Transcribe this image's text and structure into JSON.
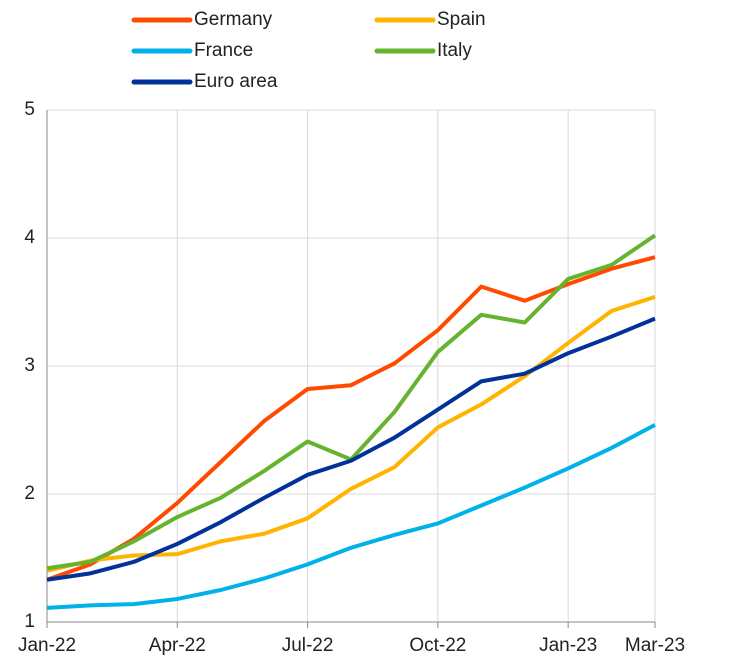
{
  "chart_data": {
    "type": "line",
    "x": [
      "2022-01",
      "2022-02",
      "2022-03",
      "2022-04",
      "2022-05",
      "2022-06",
      "2022-07",
      "2022-08",
      "2022-09",
      "2022-10",
      "2022-11",
      "2022-12",
      "2023-01",
      "2023-02",
      "2023-03"
    ],
    "series": [
      {
        "name": "Germany",
        "color": "#ff4b00",
        "values": [
          1.33,
          1.45,
          1.65,
          1.93,
          2.25,
          2.57,
          2.82,
          2.85,
          3.02,
          3.28,
          3.62,
          3.51,
          3.64,
          3.76,
          3.85
        ]
      },
      {
        "name": "Spain",
        "color": "#ffb400",
        "values": [
          1.4,
          1.48,
          1.52,
          1.53,
          1.63,
          1.69,
          1.81,
          2.04,
          2.21,
          2.52,
          2.7,
          2.92,
          3.18,
          3.43,
          3.54
        ]
      },
      {
        "name": "France",
        "color": "#00b1ea",
        "values": [
          1.11,
          1.13,
          1.14,
          1.18,
          1.25,
          1.34,
          1.45,
          1.58,
          1.68,
          1.77,
          1.91,
          2.05,
          2.2,
          2.36,
          2.54
        ]
      },
      {
        "name": "Italy",
        "color": "#65b32e",
        "values": [
          1.42,
          1.47,
          1.63,
          1.82,
          1.97,
          2.18,
          2.41,
          2.27,
          2.64,
          3.11,
          3.4,
          3.34,
          3.68,
          3.79,
          4.02
        ]
      },
      {
        "name": "Euro area",
        "color": "#003299",
        "values": [
          1.33,
          1.38,
          1.47,
          1.61,
          1.78,
          1.97,
          2.15,
          2.26,
          2.44,
          2.66,
          2.88,
          2.94,
          3.1,
          3.23,
          3.37
        ]
      }
    ],
    "xlim": [
      "2022-01",
      "2023-03"
    ],
    "xticks": [
      {
        "value": "2022-01",
        "label": "Jan-22"
      },
      {
        "value": "2022-04",
        "label": "Apr-22"
      },
      {
        "value": "2022-07",
        "label": "Jul-22"
      },
      {
        "value": "2022-10",
        "label": "Oct-22"
      },
      {
        "value": "2023-01",
        "label": "Jan-23"
      },
      {
        "value": "2023-03",
        "label": "Mar-23"
      }
    ],
    "ylim": [
      1,
      5
    ],
    "yticks": [
      1,
      2,
      3,
      4,
      5
    ],
    "grid": true,
    "legend": "top"
  }
}
